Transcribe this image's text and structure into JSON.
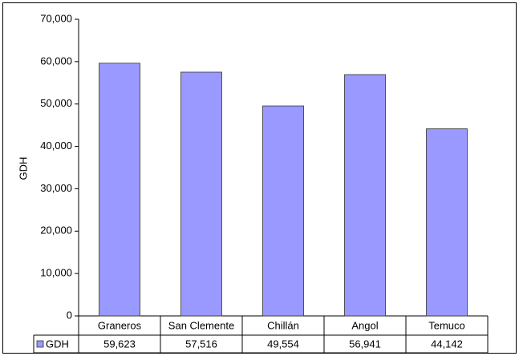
{
  "chart_data": {
    "type": "bar",
    "y_label": "GDH",
    "categories": [
      "Graneros",
      "San Clemente",
      "Chillán",
      "Angol",
      "Temuco"
    ],
    "series": [
      {
        "name": "GDH",
        "color": "#9999ff",
        "values": [
          59623,
          57516,
          49554,
          56941,
          44142
        ],
        "value_labels": [
          "59,623",
          "57,516",
          "49,554",
          "56,941",
          "44,142"
        ]
      }
    ],
    "ylim": [
      0,
      70000
    ],
    "yticks": [
      0,
      {
        "value": 10000,
        "label": "10,000"
      },
      {
        "value": 20000,
        "label": "20,000"
      },
      {
        "value": 30000,
        "label": "30,000"
      },
      {
        "value": 40000,
        "label": "40,000"
      },
      {
        "value": 50000,
        "label": "50,000"
      },
      {
        "value": 60000,
        "label": "60,000"
      },
      {
        "value": 70000,
        "label": "70,000"
      }
    ],
    "grid": false,
    "data_table": true
  }
}
